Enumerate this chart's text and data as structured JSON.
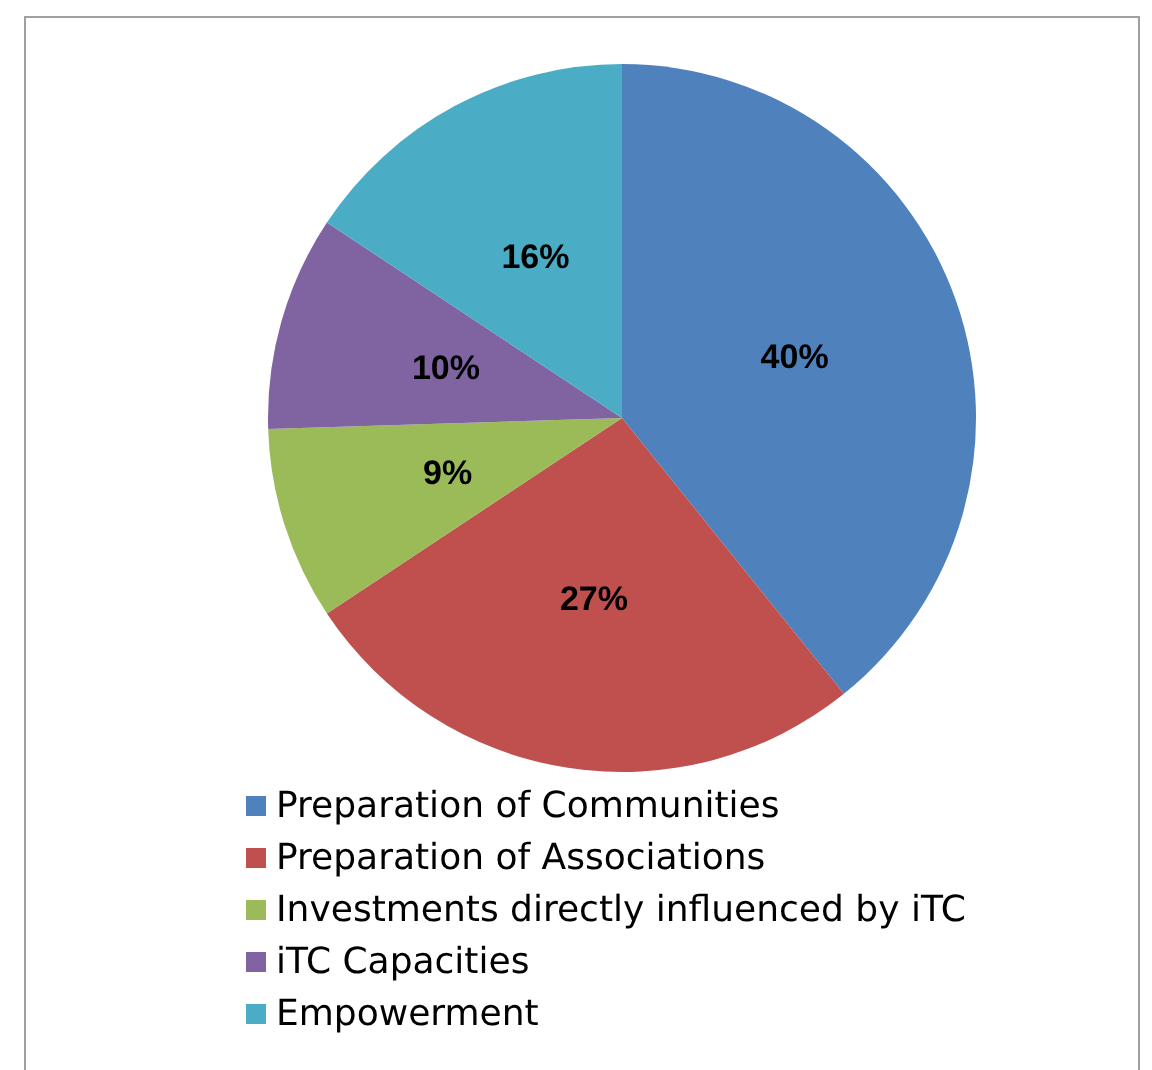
{
  "chart_data": {
    "type": "pie",
    "categories": [
      "Preparation of Communities",
      "Preparation of Associations",
      "Investments directly influenced by iTC",
      "iTC Capacities",
      "Empowerment"
    ],
    "values": [
      40,
      27,
      9,
      10,
      16
    ],
    "colors": [
      "#4f81bd",
      "#c0504d",
      "#9bbb59",
      "#8064a2",
      "#4bacc6"
    ],
    "value_labels": [
      "40%",
      "27%",
      "9%",
      "10%",
      "16%"
    ],
    "legend": "bottom"
  }
}
